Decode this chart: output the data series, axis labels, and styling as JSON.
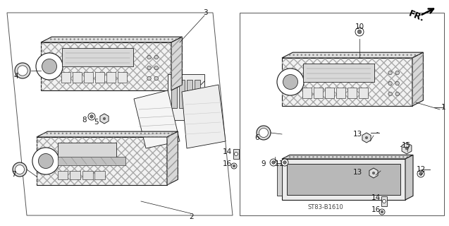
{
  "bg_color": "#ffffff",
  "line_color": "#1a1a1a",
  "diagram_code": "ST83-B1610",
  "radio_hatch": "///",
  "top_hatch": "...",
  "side_hatch": "xxx"
}
